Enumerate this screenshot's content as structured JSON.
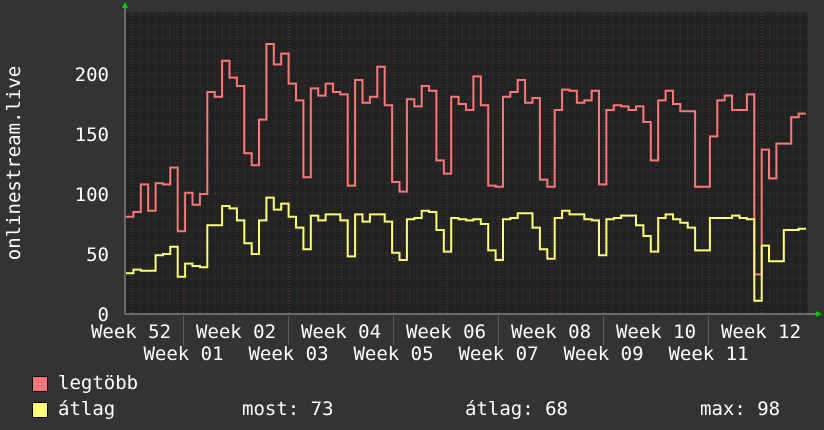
{
  "chart_data": {
    "type": "line",
    "ylabel": "onlinestream.live",
    "ylim": [
      0,
      250
    ],
    "yticks": [
      "0",
      "50",
      "100",
      "150",
      "200"
    ],
    "xticks": [
      "Week 52",
      "Week 01",
      "Week 02",
      "Week 03",
      "Week 04",
      "Week 05",
      "Week 06",
      "Week 07",
      "Week 08",
      "Week 09",
      "Week 10",
      "Week 11",
      "Week 12"
    ],
    "grid": true,
    "step": true,
    "series": [
      {
        "name": "legtöbb",
        "color": "#ff7777",
        "values": [
          81,
          85,
          108,
          86,
          109,
          108,
          122,
          69,
          101,
          91,
          100,
          185,
          181,
          211,
          197,
          190,
          134,
          124,
          162,
          225,
          208,
          217,
          192,
          178,
          114,
          188,
          182,
          192,
          185,
          183,
          107,
          195,
          176,
          181,
          206,
          174,
          110,
          102,
          179,
          173,
          190,
          186,
          128,
          117,
          181,
          175,
          170,
          198,
          174,
          107,
          106,
          181,
          185,
          195,
          176,
          180,
          112,
          106,
          170,
          187,
          186,
          176,
          178,
          186,
          108,
          170,
          174,
          173,
          170,
          173,
          160,
          128,
          178,
          186,
          175,
          169,
          169,
          106,
          106,
          148,
          178,
          182,
          170,
          170,
          183,
          33,
          137,
          113,
          142,
          142,
          164,
          167
        ]
      },
      {
        "name": "átlag",
        "color": "#ffff77",
        "values": [
          34,
          37,
          36,
          36,
          49,
          50,
          56,
          31,
          42,
          40,
          39,
          74,
          74,
          90,
          88,
          78,
          59,
          50,
          78,
          97,
          87,
          92,
          81,
          72,
          54,
          82,
          78,
          83,
          83,
          78,
          48,
          83,
          77,
          83,
          83,
          77,
          51,
          45,
          79,
          80,
          86,
          85,
          70,
          52,
          80,
          79,
          78,
          79,
          75,
          53,
          45,
          79,
          80,
          84,
          84,
          72,
          54,
          46,
          80,
          86,
          83,
          83,
          79,
          78,
          49,
          79,
          80,
          82,
          82,
          74,
          65,
          52,
          80,
          83,
          79,
          76,
          72,
          53,
          53,
          80,
          80,
          80,
          82,
          80,
          79,
          11,
          57,
          44,
          44,
          70,
          70,
          71
        ]
      }
    ]
  },
  "legend": {
    "max_label": "legtöbb",
    "avg_label": "átlag",
    "now": "most: 73",
    "avg": "átlag: 68",
    "max": "max: 98"
  }
}
